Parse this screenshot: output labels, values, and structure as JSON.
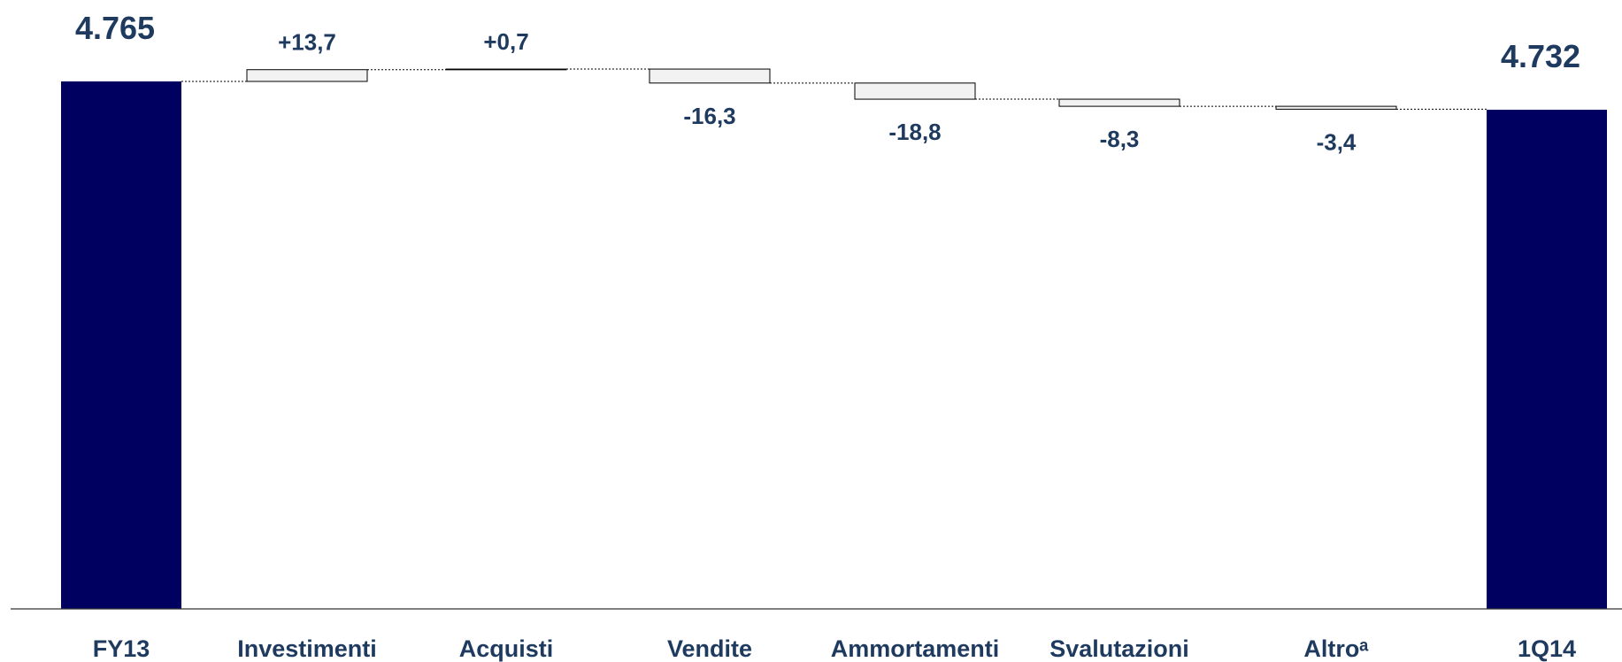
{
  "chart_data": {
    "type": "bar",
    "subtype": "waterfall",
    "categories": [
      "FY13",
      "Investimenti",
      "Acquisti",
      "Vendite",
      "Ammortamenti",
      "Svalutazioni",
      "Altroᵃ",
      "1Q14"
    ],
    "kinds": [
      "total",
      "delta",
      "delta",
      "delta",
      "delta",
      "delta",
      "delta",
      "total"
    ],
    "values": [
      4765,
      13.7,
      0.7,
      -16.3,
      -18.8,
      -8.3,
      -3.4,
      4732
    ],
    "value_labels": [
      "4.765",
      "+13,7",
      "+0,7",
      "-16,3",
      "-18,8",
      "-8,3",
      "-3,4",
      "4.732"
    ],
    "title": "",
    "xlabel": "",
    "ylabel": "",
    "grid": false,
    "legend": "none",
    "colors": {
      "total_bar": "#000060",
      "delta_fill": "#f2f2f2",
      "delta_stroke": "#000000",
      "label_text": "#1f3a5f",
      "connector": "#000000",
      "axis": "#333333"
    }
  }
}
